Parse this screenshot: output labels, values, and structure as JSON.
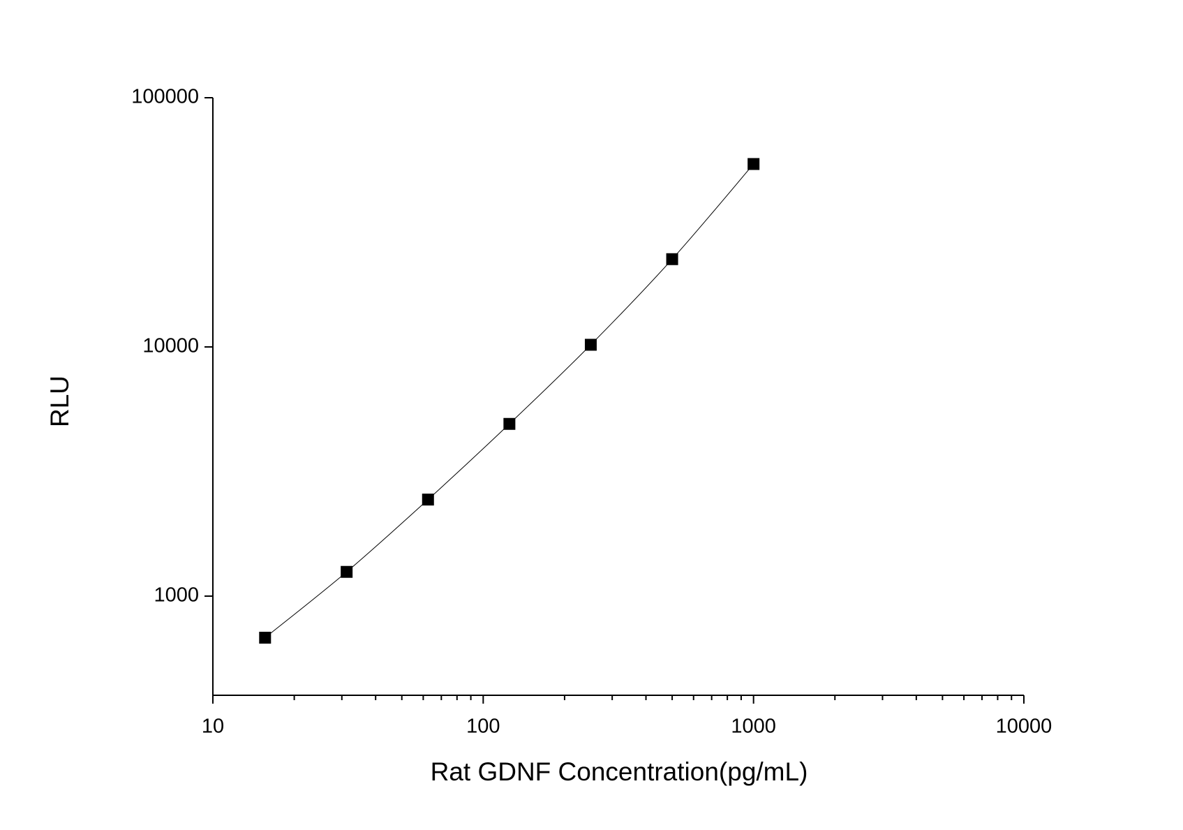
{
  "chart_data": {
    "type": "scatter",
    "x_label": "Rat GDNF Concentration(pg/mL)",
    "y_label": "RLU",
    "x": [
      15.6,
      31.25,
      62.5,
      125,
      250,
      500,
      1000
    ],
    "series": [
      {
        "color": "#000000",
        "values": [
          681,
          1251,
          2440,
          4910,
          10200,
          22500,
          54200
        ]
      }
    ],
    "connect": true,
    "xlog": true,
    "ylog": true,
    "xlim": [
      10,
      10000
    ],
    "ylim": [
      400,
      100000
    ],
    "xticks": [
      10,
      100,
      1000,
      10000
    ],
    "xminor_ticks": [
      20,
      30,
      40,
      50,
      60,
      70,
      80,
      90,
      200,
      300,
      400,
      500,
      600,
      700,
      800,
      900,
      2000,
      3000,
      4000,
      5000,
      6000,
      7000,
      8000,
      9000
    ],
    "yticks": [
      1000,
      10000,
      100000
    ]
  }
}
